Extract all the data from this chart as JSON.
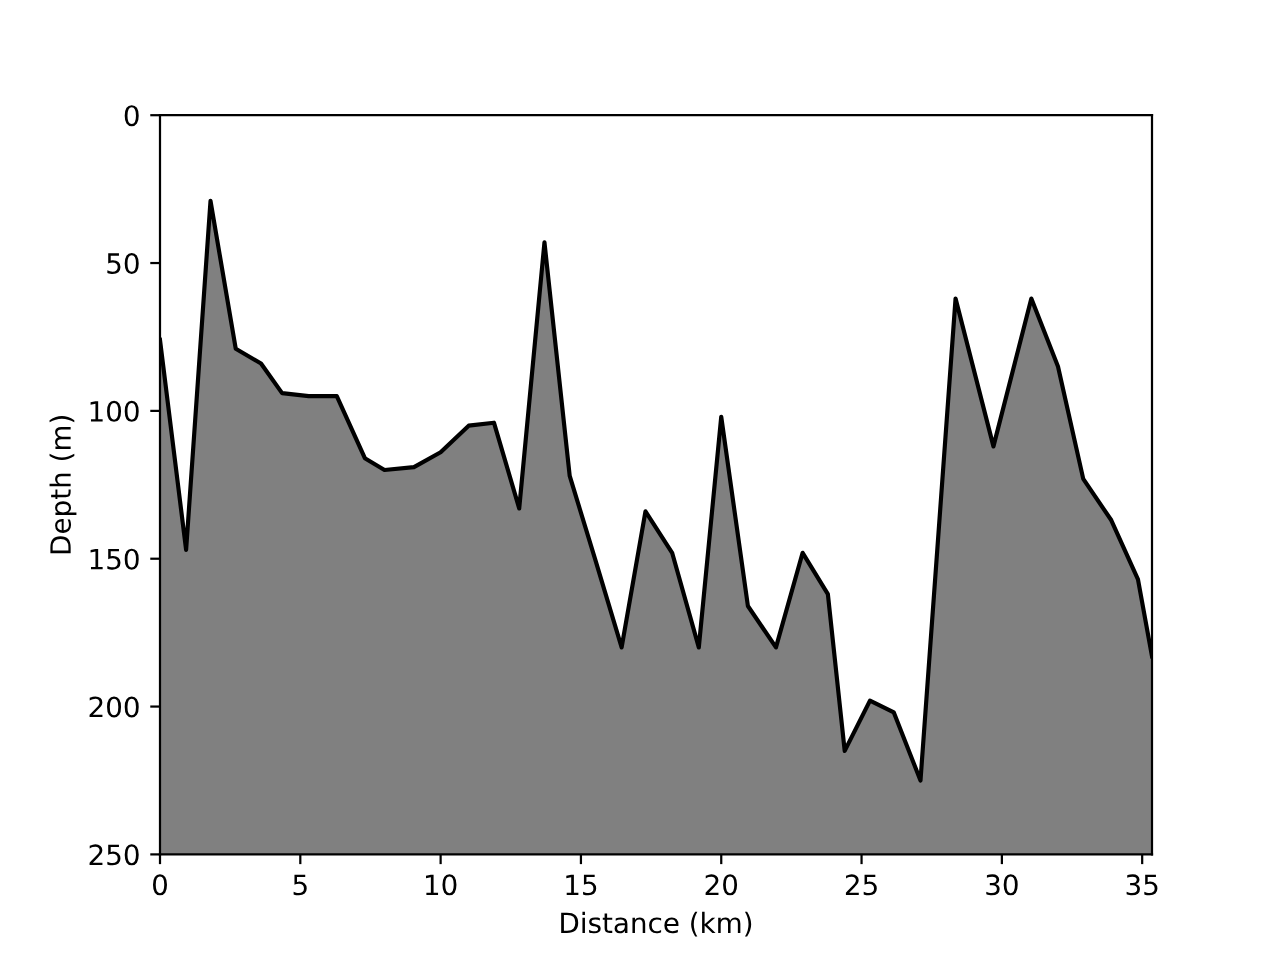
{
  "chart_data": {
    "type": "area",
    "xlabel": "Distance (km)",
    "ylabel": "Depth (m)",
    "x": [
      0,
      0.93,
      1.8,
      2.7,
      3.6,
      4.35,
      5.3,
      6.3,
      7.3,
      8.0,
      9.05,
      10.0,
      11.0,
      11.9,
      12.8,
      13.7,
      14.6,
      15.5,
      16.45,
      17.3,
      18.25,
      19.2,
      20.0,
      20.95,
      21.95,
      22.9,
      23.8,
      24.4,
      25.3,
      26.15,
      27.1,
      28.35,
      29.7,
      31.05,
      32.0,
      32.9,
      33.9,
      34.85,
      35.35
    ],
    "series": [
      {
        "color": "#808080",
        "values": [
          76,
          147,
          29,
          79,
          84,
          94,
          95,
          95,
          116,
          120,
          119,
          114,
          105,
          104,
          133,
          43,
          122,
          150,
          180,
          134,
          148,
          180,
          102,
          166,
          180,
          148,
          162,
          215,
          198,
          202,
          225,
          62,
          112,
          62,
          85,
          123,
          137,
          157,
          183
        ]
      }
    ],
    "xlim": [
      0,
      35.35
    ],
    "xticks": [
      0,
      5,
      10,
      15,
      20,
      25,
      30,
      35
    ],
    "ylim": [
      250,
      0
    ],
    "yticks": [
      0,
      50,
      100,
      150,
      200,
      250
    ],
    "grid": false,
    "legend": false
  }
}
